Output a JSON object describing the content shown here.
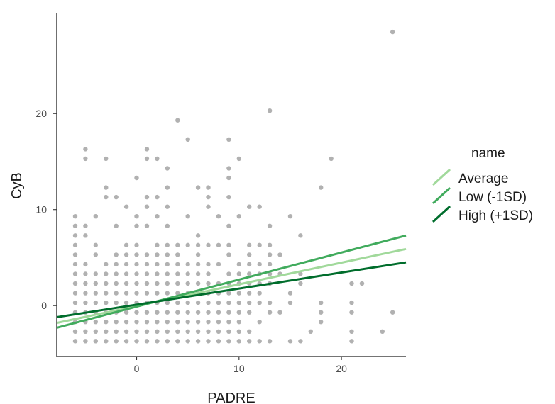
{
  "chart_data": {
    "type": "scatter",
    "title": "",
    "xlabel": "PADRE",
    "ylabel": "CyB",
    "xlim": [
      -7.8,
      26.3
    ],
    "ylim": [
      -5.3,
      30.5
    ],
    "x_ticks": [
      0,
      10,
      20
    ],
    "y_ticks": [
      0,
      10,
      20
    ],
    "x_tick_labels": [
      "0",
      "10",
      "20"
    ],
    "y_tick_labels": [
      "0",
      "10",
      "20"
    ],
    "grid": false,
    "legend_title": "name",
    "legend_position": "right",
    "point_color": "#333333",
    "series": [
      {
        "name": "Average",
        "color": "#a1d99b",
        "x": [
          -7.8,
          26.3
        ],
        "y": [
          -1.8,
          5.9
        ]
      },
      {
        "name": "Low (-1SD)",
        "color": "#41ab5d",
        "x": [
          -7.8,
          26.3
        ],
        "y": [
          -2.3,
          7.3
        ]
      },
      {
        "name": "High (+1SD)",
        "color": "#006d2c",
        "x": [
          -7.8,
          26.3
        ],
        "y": [
          -1.2,
          4.5
        ]
      }
    ],
    "points": [
      [
        25,
        28.5
      ],
      [
        13,
        20.3
      ],
      [
        4,
        19.3
      ],
      [
        5,
        17.3
      ],
      [
        9,
        17.3
      ],
      [
        -5,
        16.3
      ],
      [
        1,
        16.3
      ],
      [
        -5,
        15.3
      ],
      [
        -3,
        15.3
      ],
      [
        1,
        15.3
      ],
      [
        2,
        15.3
      ],
      [
        10,
        15.3
      ],
      [
        19,
        15.3
      ],
      [
        3,
        14.3
      ],
      [
        9,
        14.3
      ],
      [
        0,
        13.3
      ],
      [
        9,
        13.3
      ],
      [
        -3,
        12.3
      ],
      [
        3,
        12.3
      ],
      [
        6,
        12.3
      ],
      [
        7,
        12.3
      ],
      [
        18,
        12.3
      ],
      [
        -3,
        11.3
      ],
      [
        -2,
        11.3
      ],
      [
        1,
        11.3
      ],
      [
        2,
        11.3
      ],
      [
        7,
        11.3
      ],
      [
        9,
        11.3
      ],
      [
        -1,
        10.3
      ],
      [
        1,
        10.3
      ],
      [
        3,
        10.3
      ],
      [
        7,
        10.3
      ],
      [
        11,
        10.3
      ],
      [
        12,
        10.3
      ],
      [
        -6,
        9.3
      ],
      [
        -4,
        9.3
      ],
      [
        0,
        9.3
      ],
      [
        2,
        9.3
      ],
      [
        5,
        9.3
      ],
      [
        8,
        9.3
      ],
      [
        10,
        9.3
      ],
      [
        15,
        9.3
      ],
      [
        -6,
        8.3
      ],
      [
        -5,
        8.3
      ],
      [
        -2,
        8.3
      ],
      [
        0,
        8.3
      ],
      [
        1,
        8.3
      ],
      [
        3,
        8.3
      ],
      [
        9,
        8.3
      ],
      [
        13,
        8.3
      ],
      [
        -6,
        7.3
      ],
      [
        -5,
        7.3
      ],
      [
        6,
        7.3
      ],
      [
        16,
        7.3
      ],
      [
        -6,
        6.3
      ],
      [
        -4,
        6.3
      ],
      [
        -1,
        6.3
      ],
      [
        0,
        6.3
      ],
      [
        2,
        6.3
      ],
      [
        3,
        6.3
      ],
      [
        4,
        6.3
      ],
      [
        5,
        6.3
      ],
      [
        6,
        6.3
      ],
      [
        7,
        6.3
      ],
      [
        8,
        6.3
      ],
      [
        9,
        6.3
      ],
      [
        11,
        6.3
      ],
      [
        12,
        6.3
      ],
      [
        13,
        6.3
      ],
      [
        -6,
        5.3
      ],
      [
        -4,
        5.3
      ],
      [
        -2,
        5.3
      ],
      [
        -1,
        5.3
      ],
      [
        0,
        5.3
      ],
      [
        1,
        5.3
      ],
      [
        2,
        5.3
      ],
      [
        3,
        5.3
      ],
      [
        4,
        5.3
      ],
      [
        6,
        5.3
      ],
      [
        9,
        5.3
      ],
      [
        11,
        5.3
      ],
      [
        13,
        5.3
      ],
      [
        14,
        5.3
      ],
      [
        -6,
        4.3
      ],
      [
        -5,
        4.3
      ],
      [
        -3,
        4.3
      ],
      [
        -2,
        4.3
      ],
      [
        -1,
        4.3
      ],
      [
        0,
        4.3
      ],
      [
        1,
        4.3
      ],
      [
        2,
        4.3
      ],
      [
        3,
        4.3
      ],
      [
        4,
        4.3
      ],
      [
        5,
        4.3
      ],
      [
        6,
        4.3
      ],
      [
        7,
        4.3
      ],
      [
        8,
        4.3
      ],
      [
        10,
        4.3
      ],
      [
        11,
        4.3
      ],
      [
        12,
        4.3
      ],
      [
        13,
        4.3
      ],
      [
        -6,
        3.3
      ],
      [
        -5,
        3.3
      ],
      [
        -4,
        3.3
      ],
      [
        -3,
        3.3
      ],
      [
        -2,
        3.3
      ],
      [
        -1,
        3.3
      ],
      [
        0,
        3.3
      ],
      [
        1,
        3.3
      ],
      [
        2,
        3.3
      ],
      [
        3,
        3.3
      ],
      [
        4,
        3.3
      ],
      [
        5,
        3.3
      ],
      [
        6,
        3.3
      ],
      [
        7,
        3.3
      ],
      [
        9,
        3.3
      ],
      [
        10,
        3.3
      ],
      [
        11,
        3.3
      ],
      [
        12,
        3.3
      ],
      [
        13,
        3.3
      ],
      [
        14,
        3.3
      ],
      [
        16,
        3.3
      ],
      [
        -6,
        2.3
      ],
      [
        -5,
        2.3
      ],
      [
        -4,
        2.3
      ],
      [
        -3,
        2.3
      ],
      [
        -2,
        2.3
      ],
      [
        -1,
        2.3
      ],
      [
        0,
        2.3
      ],
      [
        1,
        2.3
      ],
      [
        2,
        2.3
      ],
      [
        3,
        2.3
      ],
      [
        4,
        2.3
      ],
      [
        5,
        2.3
      ],
      [
        6,
        2.3
      ],
      [
        7,
        2.3
      ],
      [
        8,
        2.3
      ],
      [
        9,
        2.3
      ],
      [
        10,
        2.3
      ],
      [
        11,
        2.3
      ],
      [
        12,
        2.3
      ],
      [
        13,
        2.3
      ],
      [
        16,
        2.3
      ],
      [
        21,
        2.3
      ],
      [
        22,
        2.3
      ],
      [
        -6,
        1.3
      ],
      [
        -5,
        1.3
      ],
      [
        -4,
        1.3
      ],
      [
        -3,
        1.3
      ],
      [
        -2,
        1.3
      ],
      [
        -1,
        1.3
      ],
      [
        0,
        1.3
      ],
      [
        1,
        1.3
      ],
      [
        2,
        1.3
      ],
      [
        3,
        1.3
      ],
      [
        4,
        1.3
      ],
      [
        5,
        1.3
      ],
      [
        6,
        1.3
      ],
      [
        7,
        1.3
      ],
      [
        8,
        1.3
      ],
      [
        9,
        1.3
      ],
      [
        10,
        1.3
      ],
      [
        11,
        1.3
      ],
      [
        12,
        1.3
      ],
      [
        15,
        1.3
      ],
      [
        -6,
        0.3
      ],
      [
        -5,
        0.3
      ],
      [
        -4,
        0.3
      ],
      [
        -3,
        0.3
      ],
      [
        -2,
        0.3
      ],
      [
        -1,
        0.3
      ],
      [
        0,
        0.3
      ],
      [
        1,
        0.3
      ],
      [
        2,
        0.3
      ],
      [
        3,
        0.3
      ],
      [
        4,
        0.3
      ],
      [
        5,
        0.3
      ],
      [
        6,
        0.3
      ],
      [
        7,
        0.3
      ],
      [
        8,
        0.3
      ],
      [
        9,
        0.3
      ],
      [
        10,
        0.3
      ],
      [
        11,
        0.3
      ],
      [
        12,
        0.3
      ],
      [
        13,
        0.3
      ],
      [
        15,
        0.3
      ],
      [
        18,
        0.3
      ],
      [
        21,
        0.3
      ],
      [
        -6,
        -0.7
      ],
      [
        -5,
        -0.7
      ],
      [
        -4,
        -0.7
      ],
      [
        -3,
        -0.7
      ],
      [
        -2,
        -0.7
      ],
      [
        -1,
        -0.7
      ],
      [
        0,
        -0.7
      ],
      [
        1,
        -0.7
      ],
      [
        2,
        -0.7
      ],
      [
        3,
        -0.7
      ],
      [
        4,
        -0.7
      ],
      [
        5,
        -0.7
      ],
      [
        6,
        -0.7
      ],
      [
        7,
        -0.7
      ],
      [
        8,
        -0.7
      ],
      [
        9,
        -0.7
      ],
      [
        10,
        -0.7
      ],
      [
        11,
        -0.7
      ],
      [
        13,
        -0.7
      ],
      [
        14,
        -0.7
      ],
      [
        18,
        -0.7
      ],
      [
        21,
        -0.7
      ],
      [
        25,
        -0.7
      ],
      [
        -6,
        -1.7
      ],
      [
        -5,
        -1.7
      ],
      [
        -4,
        -1.7
      ],
      [
        -3,
        -1.7
      ],
      [
        -2,
        -1.7
      ],
      [
        -1,
        -1.7
      ],
      [
        0,
        -1.7
      ],
      [
        1,
        -1.7
      ],
      [
        2,
        -1.7
      ],
      [
        3,
        -1.7
      ],
      [
        4,
        -1.7
      ],
      [
        5,
        -1.7
      ],
      [
        6,
        -1.7
      ],
      [
        7,
        -1.7
      ],
      [
        8,
        -1.7
      ],
      [
        9,
        -1.7
      ],
      [
        10,
        -1.7
      ],
      [
        12,
        -1.7
      ],
      [
        18,
        -1.7
      ],
      [
        -6,
        -2.7
      ],
      [
        -5,
        -2.7
      ],
      [
        -4,
        -2.7
      ],
      [
        -3,
        -2.7
      ],
      [
        -2,
        -2.7
      ],
      [
        -1,
        -2.7
      ],
      [
        0,
        -2.7
      ],
      [
        1,
        -2.7
      ],
      [
        2,
        -2.7
      ],
      [
        3,
        -2.7
      ],
      [
        4,
        -2.7
      ],
      [
        5,
        -2.7
      ],
      [
        6,
        -2.7
      ],
      [
        7,
        -2.7
      ],
      [
        8,
        -2.7
      ],
      [
        9,
        -2.7
      ],
      [
        10,
        -2.7
      ],
      [
        11,
        -2.7
      ],
      [
        17,
        -2.7
      ],
      [
        21,
        -2.7
      ],
      [
        24,
        -2.7
      ],
      [
        -6,
        -3.7
      ],
      [
        -5,
        -3.7
      ],
      [
        -4,
        -3.7
      ],
      [
        -3,
        -3.7
      ],
      [
        -2,
        -3.7
      ],
      [
        -1,
        -3.7
      ],
      [
        0,
        -3.7
      ],
      [
        1,
        -3.7
      ],
      [
        2,
        -3.7
      ],
      [
        3,
        -3.7
      ],
      [
        4,
        -3.7
      ],
      [
        5,
        -3.7
      ],
      [
        6,
        -3.7
      ],
      [
        7,
        -3.7
      ],
      [
        8,
        -3.7
      ],
      [
        9,
        -3.7
      ],
      [
        10,
        -3.7
      ],
      [
        11,
        -3.7
      ],
      [
        12,
        -3.7
      ],
      [
        13,
        -3.7
      ],
      [
        15,
        -3.7
      ],
      [
        16,
        -3.7
      ],
      [
        21,
        -3.7
      ]
    ]
  }
}
